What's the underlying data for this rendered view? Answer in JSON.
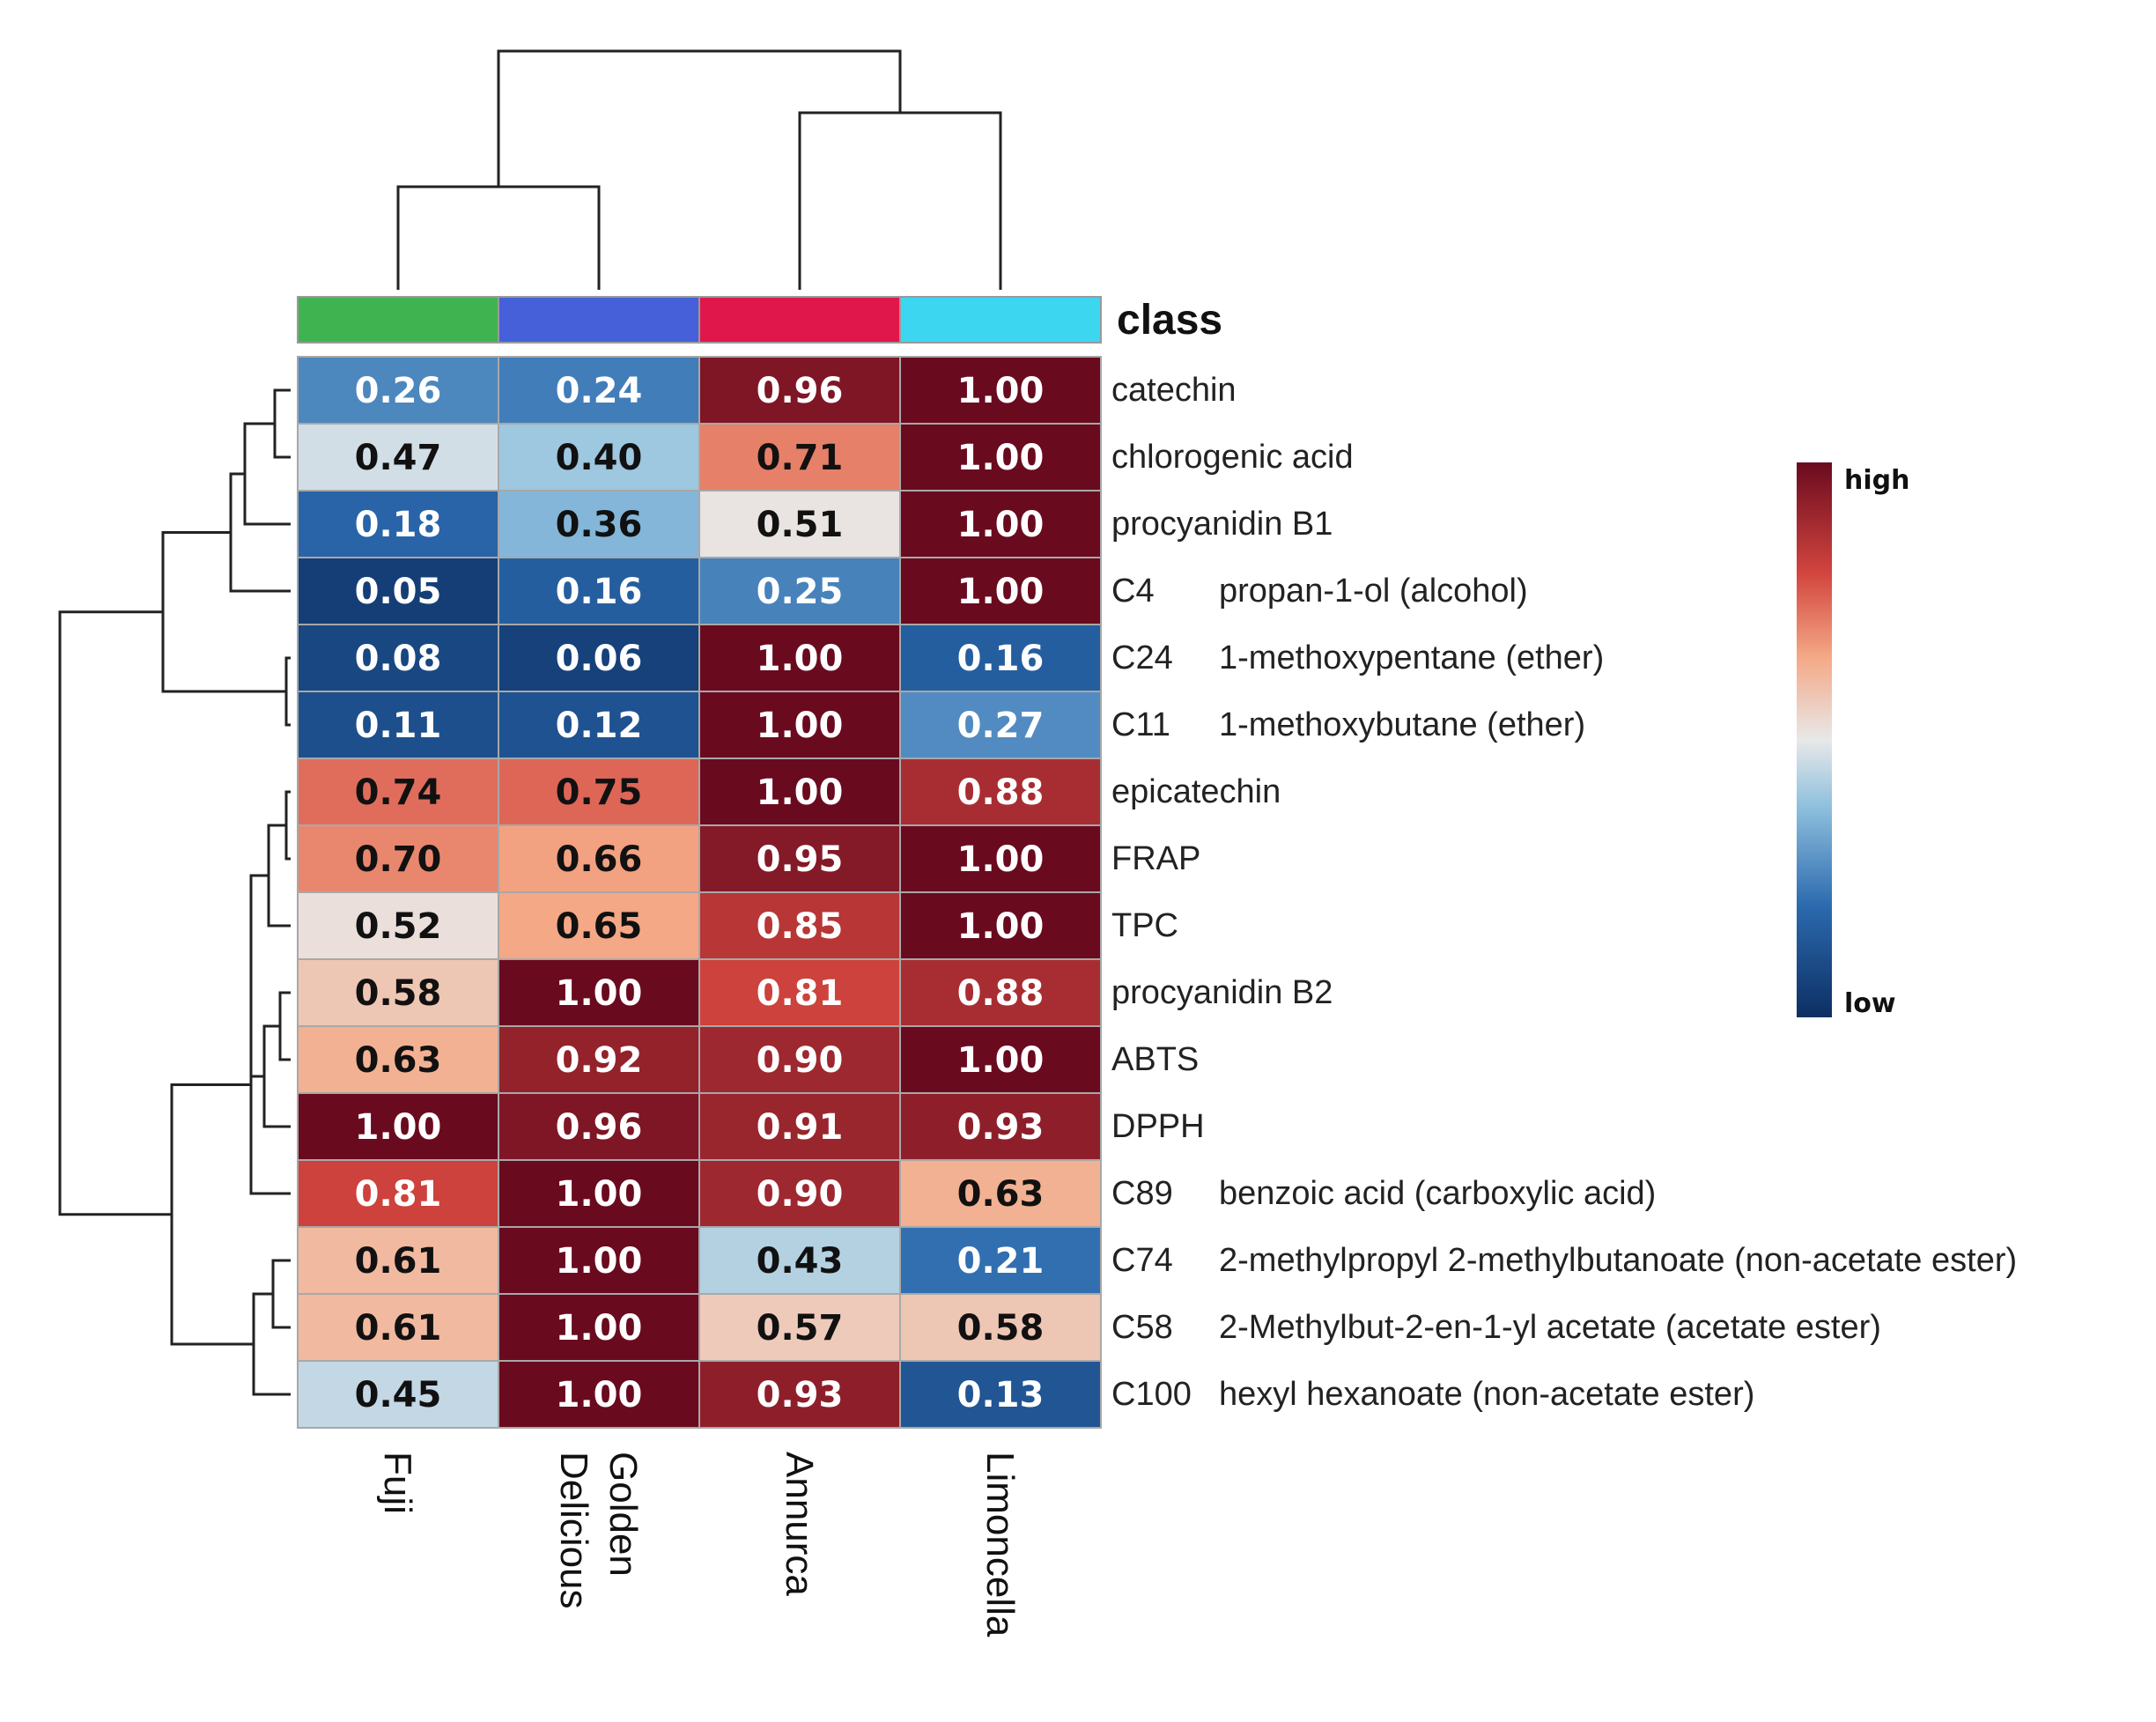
{
  "chart_data": {
    "type": "heatmap",
    "title": "",
    "class_label": "class",
    "columns": [
      "Fuji",
      "Golden Delicious",
      "Annurca",
      "Limoncella"
    ],
    "column_label_lines": [
      [
        "Fuji"
      ],
      [
        "Golden",
        "Delicious"
      ],
      [
        "Annurca"
      ],
      [
        "Limoncella"
      ]
    ],
    "class_colors": [
      "#3fb34f",
      "#4560d8",
      "#e0174b",
      "#3dd6f0"
    ],
    "rows": [
      {
        "code": "",
        "name": "catechin",
        "values": [
          "0.26",
          "0.24",
          "0.96",
          "1.00"
        ]
      },
      {
        "code": "",
        "name": "chlorogenic acid",
        "values": [
          "0.47",
          "0.40",
          "0.71",
          "1.00"
        ]
      },
      {
        "code": "",
        "name": "procyanidin B1",
        "values": [
          "0.18",
          "0.36",
          "0.51",
          "1.00"
        ]
      },
      {
        "code": "C4",
        "name": "propan-1-ol (alcohol)",
        "values": [
          "0.05",
          "0.16",
          "0.25",
          "1.00"
        ]
      },
      {
        "code": "C24",
        "name": "1-methoxypentane (ether)",
        "values": [
          "0.08",
          "0.06",
          "1.00",
          "0.16"
        ]
      },
      {
        "code": "C11",
        "name": "1-methoxybutane (ether)",
        "values": [
          "0.11",
          "0.12",
          "1.00",
          "0.27"
        ]
      },
      {
        "code": "",
        "name": "epicatechin",
        "values": [
          "0.74",
          "0.75",
          "1.00",
          "0.88"
        ]
      },
      {
        "code": "",
        "name": "FRAP",
        "values": [
          "0.70",
          "0.66",
          "0.95",
          "1.00"
        ]
      },
      {
        "code": "",
        "name": "TPC",
        "values": [
          "0.52",
          "0.65",
          "0.85",
          "1.00"
        ]
      },
      {
        "code": "",
        "name": "procyanidin B2",
        "values": [
          "0.58",
          "1.00",
          "0.81",
          "0.88"
        ]
      },
      {
        "code": "",
        "name": "ABTS",
        "values": [
          "0.63",
          "0.92",
          "0.90",
          "1.00"
        ]
      },
      {
        "code": "",
        "name": "DPPH",
        "values": [
          "1.00",
          "0.96",
          "0.91",
          "0.93"
        ]
      },
      {
        "code": "C89",
        "name": "benzoic acid (carboxylic acid)",
        "values": [
          "0.81",
          "1.00",
          "0.90",
          "0.63"
        ]
      },
      {
        "code": "C74",
        "name": "2-methylpropyl 2-methylbutanoate (non-acetate ester)",
        "values": [
          "0.61",
          "1.00",
          "0.43",
          "0.21"
        ]
      },
      {
        "code": "C58",
        "name": "2-Methylbut-2-en-1-yl acetate (acetate ester)",
        "values": [
          "0.61",
          "1.00",
          "0.57",
          "0.58"
        ]
      },
      {
        "code": "C100",
        "name": "hexyl hexanoate (non-acetate ester)",
        "values": [
          "0.45",
          "1.00",
          "0.93",
          "0.13"
        ]
      }
    ],
    "color_scale": {
      "high_label": "high",
      "low_label": "low",
      "range": [
        0,
        1
      ],
      "stops": [
        {
          "value": 0.0,
          "color": "#0d2f63"
        },
        {
          "value": 0.2,
          "color": "#2b6aae"
        },
        {
          "value": 0.38,
          "color": "#8fc0de"
        },
        {
          "value": 0.5,
          "color": "#e8e8e8"
        },
        {
          "value": 0.65,
          "color": "#f4a886"
        },
        {
          "value": 0.8,
          "color": "#d2453e"
        },
        {
          "value": 1.0,
          "color": "#6a0a1f"
        }
      ]
    },
    "column_dendrogram": "((Fuji,Golden Delicious),(Annurca,Limoncella))",
    "row_dendrogram": "((((catechin,chlorogenic acid),procyanidin B1),C4),(C24,C11)),((((epicatechin,FRAP),TPC),((procyanidin B2,ABTS),DPPH)),C89),((C74,C58),C100))"
  }
}
